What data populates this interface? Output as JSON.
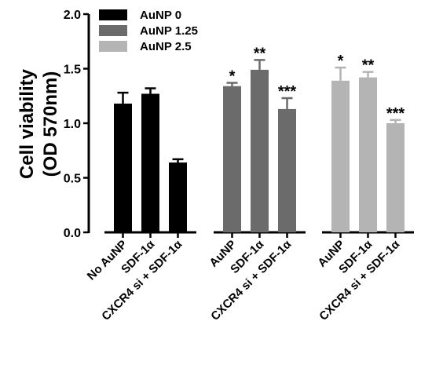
{
  "chart_data": {
    "type": "bar",
    "ylabel": [
      "Cell viability",
      "(OD 570nm)"
    ],
    "ylim": [
      0,
      2.0
    ],
    "yticks": [
      "0.0",
      "0.5",
      "1.0",
      "1.5",
      "2.0"
    ],
    "legend": {
      "placement": "top-left",
      "entries": [
        "AuNP 0",
        "AuNP 1.25",
        "AuNP 2.5"
      ]
    },
    "colors": [
      "#000000",
      "#6b6b6b",
      "#b4b4b4"
    ],
    "groups": [
      {
        "series": "AuNP 0",
        "categories": [
          "No AuNP",
          "SDF-1α",
          "CXCR4 si + SDF-1α"
        ],
        "values": [
          1.18,
          1.27,
          0.64
        ],
        "errors": [
          0.1,
          0.05,
          0.03
        ],
        "significance": [
          "",
          "",
          ""
        ]
      },
      {
        "series": "AuNP 1.25",
        "categories": [
          "AuNP",
          "SDF-1α",
          "CXCR4 si + SDF-1α"
        ],
        "values": [
          1.34,
          1.49,
          1.13
        ],
        "errors": [
          0.03,
          0.09,
          0.1
        ],
        "significance": [
          "*",
          "**",
          "***"
        ]
      },
      {
        "series": "AuNP 2.5",
        "categories": [
          "AuNP",
          "SDF-1α",
          "CXCR4 si + SDF-1α"
        ],
        "values": [
          1.39,
          1.42,
          1.0
        ],
        "errors": [
          0.12,
          0.05,
          0.03
        ],
        "significance": [
          "*",
          "**",
          "***"
        ]
      }
    ]
  }
}
